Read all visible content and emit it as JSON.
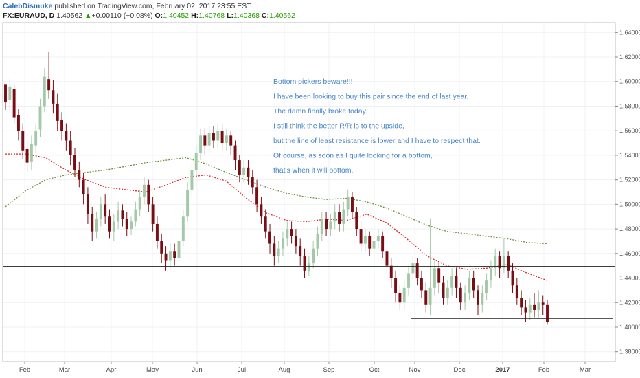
{
  "header": {
    "author": "CalebDismuke",
    "published_text": "published on TradingView.com, February 02, 2017 23:55 EST",
    "symbol": "FX:EURAUD, D",
    "last": "1.40562",
    "arrow": "▲",
    "change": "+0.00110 (+0.08%)",
    "o_label": "O:",
    "o_value": "1.40452",
    "h_label": "H:",
    "h_value": "1.40768",
    "l_label": "L:",
    "l_value": "1.40368",
    "c_label": "C:",
    "c_value": "1.40562"
  },
  "annotation": [
    "Bottom pickers beware!!!",
    "I have been looking to buy this pair since the end of last year.",
    "The damn finally broke today.",
    "I still think the better R/R is to the upside,",
    "but the line of least resistance is lower and I have to respect that.",
    "Of course, as soon as I quite looking for a bottom,",
    "that's when it will bottom."
  ],
  "colors": {
    "up": "#a3c9a8",
    "down": "#7a0c14",
    "ma_short": "#d62828",
    "ma_long": "#6b8e3a",
    "annotation_text": "#4a86c8",
    "grid": "#eef0f3"
  },
  "chart_data": {
    "type": "candlestick",
    "symbol": "FX:EURAUD",
    "timeframe": "D",
    "y_axis_ticks": [
      "1.64000",
      "1.62000",
      "1.60000",
      "1.58000",
      "1.56000",
      "1.54000",
      "1.52000",
      "1.50000",
      "1.48000",
      "1.46000",
      "1.44000",
      "1.42000",
      "1.40000",
      "1.38000"
    ],
    "x_axis_ticks": [
      "Feb",
      "Mar",
      "Apr",
      "May",
      "Jun",
      "Jul",
      "Aug",
      "Sep",
      "Oct",
      "Nov",
      "Dec",
      "2017",
      "Feb",
      "Mar"
    ],
    "ylim": [
      1.372,
      1.648
    ],
    "horizontal_lines": [
      {
        "value": 1.4495,
        "extent": "full"
      },
      {
        "value": 1.4072,
        "extent": "Nov–Feb"
      }
    ],
    "series": [
      {
        "name": "",
        "kind": "moving-average-short",
        "values": [
          1.541,
          1.541,
          1.538,
          1.528,
          1.52,
          1.514,
          1.512,
          1.51,
          1.516,
          1.522,
          1.524,
          1.519,
          1.505,
          1.493,
          1.487,
          1.486,
          1.488,
          1.487,
          1.492,
          1.485,
          1.472,
          1.458,
          1.45,
          1.447,
          1.448,
          1.451,
          1.444,
          1.438
        ]
      },
      {
        "name": "",
        "kind": "moving-average-long",
        "values": [
          1.498,
          1.511,
          1.52,
          1.524,
          1.526,
          1.528,
          1.531,
          1.534,
          1.536,
          1.538,
          1.533,
          1.526,
          1.52,
          1.514,
          1.509,
          1.506,
          1.504,
          1.505,
          1.502,
          1.497,
          1.49,
          1.483,
          1.478,
          1.476,
          1.474,
          1.472,
          1.469,
          1.468
        ]
      }
    ],
    "candles": [
      [
        1.598,
        1.583,
        1.592,
        1.577
      ],
      [
        1.585,
        1.596,
        1.602,
        1.575
      ],
      [
        1.594,
        1.571,
        1.598,
        1.566
      ],
      [
        1.573,
        1.56,
        1.578,
        1.552
      ],
      [
        1.56,
        1.544,
        1.566,
        1.537
      ],
      [
        1.545,
        1.534,
        1.552,
        1.526
      ],
      [
        1.535,
        1.549,
        1.556,
        1.528
      ],
      [
        1.548,
        1.56,
        1.566,
        1.542
      ],
      [
        1.561,
        1.58,
        1.586,
        1.555
      ],
      [
        1.58,
        1.604,
        1.611,
        1.575
      ],
      [
        1.602,
        1.593,
        1.624,
        1.586
      ],
      [
        1.593,
        1.582,
        1.601,
        1.574
      ],
      [
        1.582,
        1.568,
        1.59,
        1.56
      ],
      [
        1.569,
        1.56,
        1.575,
        1.552
      ],
      [
        1.56,
        1.552,
        1.566,
        1.544
      ],
      [
        1.552,
        1.54,
        1.56,
        1.532
      ],
      [
        1.54,
        1.528,
        1.546,
        1.522
      ],
      [
        1.528,
        1.52,
        1.535,
        1.514
      ],
      [
        1.52,
        1.508,
        1.526,
        1.5
      ],
      [
        1.508,
        1.492,
        1.514,
        1.484
      ],
      [
        1.492,
        1.478,
        1.498,
        1.47
      ],
      [
        1.478,
        1.488,
        1.494,
        1.472
      ],
      [
        1.488,
        1.5,
        1.506,
        1.482
      ],
      [
        1.5,
        1.49,
        1.508,
        1.484
      ],
      [
        1.49,
        1.478,
        1.496,
        1.472
      ],
      [
        1.478,
        1.486,
        1.492,
        1.47
      ],
      [
        1.486,
        1.495,
        1.502,
        1.48
      ],
      [
        1.495,
        1.488,
        1.5,
        1.482
      ],
      [
        1.488,
        1.48,
        1.494,
        1.474
      ],
      [
        1.48,
        1.486,
        1.49,
        1.475
      ],
      [
        1.486,
        1.496,
        1.502,
        1.482
      ],
      [
        1.496,
        1.506,
        1.512,
        1.49
      ],
      [
        1.506,
        1.516,
        1.522,
        1.5
      ],
      [
        1.516,
        1.5,
        1.52,
        1.494
      ],
      [
        1.5,
        1.484,
        1.506,
        1.478
      ],
      [
        1.484,
        1.47,
        1.49,
        1.464
      ],
      [
        1.47,
        1.46,
        1.476,
        1.452
      ],
      [
        1.46,
        1.454,
        1.466,
        1.446
      ],
      [
        1.454,
        1.462,
        1.468,
        1.448
      ],
      [
        1.462,
        1.456,
        1.468,
        1.45
      ],
      [
        1.456,
        1.47,
        1.476,
        1.452
      ],
      [
        1.47,
        1.49,
        1.496,
        1.466
      ],
      [
        1.49,
        1.512,
        1.518,
        1.486
      ],
      [
        1.512,
        1.528,
        1.534,
        1.506
      ],
      [
        1.528,
        1.542,
        1.548,
        1.522
      ],
      [
        1.542,
        1.556,
        1.562,
        1.536
      ],
      [
        1.556,
        1.548,
        1.562,
        1.54
      ],
      [
        1.548,
        1.558,
        1.564,
        1.542
      ],
      [
        1.558,
        1.552,
        1.564,
        1.546
      ],
      [
        1.552,
        1.56,
        1.566,
        1.546
      ],
      [
        1.56,
        1.55,
        1.566,
        1.544
      ],
      [
        1.55,
        1.556,
        1.562,
        1.544
      ],
      [
        1.556,
        1.548,
        1.56,
        1.54
      ],
      [
        1.548,
        1.536,
        1.552,
        1.528
      ],
      [
        1.536,
        1.524,
        1.54,
        1.518
      ],
      [
        1.524,
        1.53,
        1.536,
        1.518
      ],
      [
        1.53,
        1.522,
        1.536,
        1.516
      ],
      [
        1.522,
        1.514,
        1.528,
        1.508
      ],
      [
        1.514,
        1.5,
        1.52,
        1.494
      ],
      [
        1.5,
        1.49,
        1.506,
        1.484
      ],
      [
        1.49,
        1.478,
        1.496,
        1.472
      ],
      [
        1.478,
        1.468,
        1.484,
        1.46
      ],
      [
        1.468,
        1.458,
        1.474,
        1.45
      ],
      [
        1.458,
        1.464,
        1.47,
        1.452
      ],
      [
        1.464,
        1.472,
        1.478,
        1.458
      ],
      [
        1.472,
        1.48,
        1.486,
        1.466
      ],
      [
        1.48,
        1.474,
        1.486,
        1.468
      ],
      [
        1.474,
        1.466,
        1.48,
        1.46
      ],
      [
        1.466,
        1.458,
        1.472,
        1.45
      ],
      [
        1.458,
        1.446,
        1.464,
        1.44
      ],
      [
        1.446,
        1.452,
        1.458,
        1.442
      ],
      [
        1.452,
        1.464,
        1.47,
        1.448
      ],
      [
        1.464,
        1.476,
        1.482,
        1.458
      ],
      [
        1.476,
        1.488,
        1.494,
        1.47
      ],
      [
        1.488,
        1.48,
        1.494,
        1.474
      ],
      [
        1.48,
        1.486,
        1.492,
        1.474
      ],
      [
        1.486,
        1.494,
        1.5,
        1.48
      ],
      [
        1.494,
        1.484,
        1.5,
        1.478
      ],
      [
        1.484,
        1.496,
        1.502,
        1.478
      ],
      [
        1.496,
        1.506,
        1.512,
        1.49
      ],
      [
        1.506,
        1.494,
        1.51,
        1.488
      ],
      [
        1.494,
        1.48,
        1.498,
        1.474
      ],
      [
        1.48,
        1.468,
        1.486,
        1.462
      ],
      [
        1.468,
        1.474,
        1.48,
        1.462
      ],
      [
        1.474,
        1.464,
        1.478,
        1.458
      ],
      [
        1.464,
        1.47,
        1.478,
        1.458
      ],
      [
        1.47,
        1.474,
        1.48,
        1.464
      ],
      [
        1.474,
        1.462,
        1.478,
        1.456
      ],
      [
        1.462,
        1.45,
        1.466,
        1.444
      ],
      [
        1.45,
        1.44,
        1.456,
        1.432
      ],
      [
        1.44,
        1.428,
        1.446,
        1.42
      ],
      [
        1.428,
        1.42,
        1.434,
        1.414
      ],
      [
        1.42,
        1.432,
        1.438,
        1.414
      ],
      [
        1.432,
        1.444,
        1.45,
        1.426
      ],
      [
        1.444,
        1.452,
        1.458,
        1.438
      ],
      [
        1.452,
        1.44,
        1.456,
        1.434
      ],
      [
        1.44,
        1.43,
        1.446,
        1.424
      ],
      [
        1.43,
        1.418,
        1.436,
        1.412
      ],
      [
        1.418,
        1.432,
        1.488,
        1.41
      ],
      [
        1.432,
        1.448,
        1.454,
        1.426
      ],
      [
        1.448,
        1.436,
        1.452,
        1.428
      ],
      [
        1.436,
        1.424,
        1.442,
        1.418
      ],
      [
        1.424,
        1.432,
        1.438,
        1.418
      ],
      [
        1.432,
        1.442,
        1.448,
        1.426
      ],
      [
        1.442,
        1.432,
        1.448,
        1.424
      ],
      [
        1.432,
        1.42,
        1.436,
        1.414
      ],
      [
        1.42,
        1.428,
        1.434,
        1.414
      ],
      [
        1.428,
        1.44,
        1.446,
        1.422
      ],
      [
        1.44,
        1.43,
        1.446,
        1.424
      ],
      [
        1.43,
        1.418,
        1.434,
        1.41
      ],
      [
        1.418,
        1.428,
        1.434,
        1.412
      ],
      [
        1.428,
        1.438,
        1.444,
        1.422
      ],
      [
        1.438,
        1.448,
        1.454,
        1.432
      ],
      [
        1.448,
        1.458,
        1.464,
        1.442
      ],
      [
        1.458,
        1.448,
        1.462,
        1.44
      ],
      [
        1.448,
        1.458,
        1.472,
        1.444
      ],
      [
        1.458,
        1.446,
        1.462,
        1.44
      ],
      [
        1.446,
        1.434,
        1.452,
        1.428
      ],
      [
        1.434,
        1.424,
        1.44,
        1.418
      ],
      [
        1.424,
        1.416,
        1.43,
        1.41
      ],
      [
        1.416,
        1.412,
        1.422,
        1.404
      ],
      [
        1.412,
        1.418,
        1.424,
        1.406
      ],
      [
        1.418,
        1.414,
        1.428,
        1.408
      ],
      [
        1.414,
        1.42,
        1.43,
        1.408
      ],
      [
        1.42,
        1.418,
        1.426,
        1.41
      ],
      [
        1.418,
        1.404,
        1.422,
        1.402
      ]
    ]
  }
}
